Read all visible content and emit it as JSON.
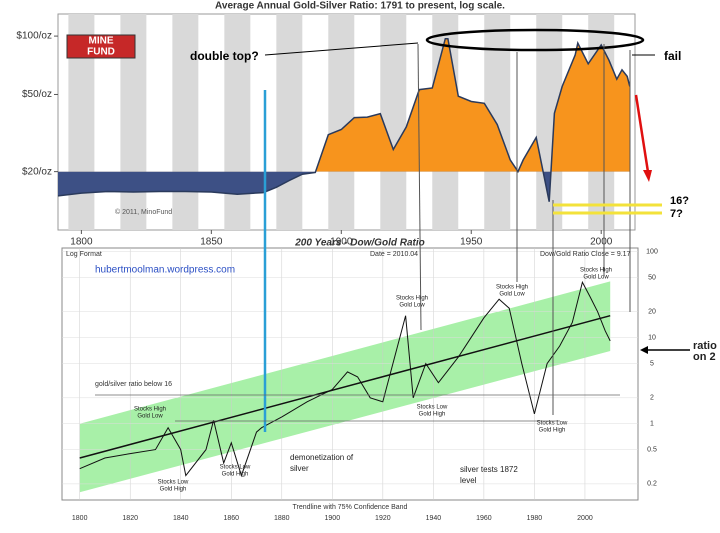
{
  "chart_data": [
    {
      "type": "area",
      "title": "Average Annual Gold-Silver Ratio: 1791 to present, log scale.",
      "logo": [
        "MINE",
        "FUND"
      ],
      "credit": "© 2011, MinoFund",
      "x": [
        1791,
        1800,
        1810,
        1820,
        1830,
        1840,
        1850,
        1860,
        1870,
        1875,
        1880,
        1885,
        1890,
        1895,
        1900,
        1905,
        1910,
        1915,
        1920,
        1925,
        1930,
        1935,
        1940,
        1941,
        1945,
        1950,
        1955,
        1960,
        1965,
        1968,
        1970,
        1975,
        1980,
        1982,
        1985,
        1990,
        1991,
        1995,
        2000,
        2003,
        2006,
        2008,
        2010,
        2011
      ],
      "series": [
        {
          "color": "#f7941d",
          "below_color": "#3d5085",
          "values": [
            15,
            15.5,
            15.8,
            15.7,
            15.8,
            15.8,
            15.7,
            15.3,
            15.6,
            16.6,
            18,
            19.4,
            19.8,
            31,
            33,
            38,
            38.2,
            39.8,
            26,
            34,
            53,
            54,
            97,
            97,
            49,
            46,
            45,
            35,
            23,
            20,
            23,
            30,
            14,
            40,
            55,
            80,
            92,
            72,
            90,
            75,
            60,
            67,
            62,
            55
          ]
        }
      ],
      "fill_base": 20,
      "log_y": true,
      "xlim": [
        1791,
        2013
      ],
      "xticks": [
        1800,
        1850,
        1900,
        1950,
        2000
      ],
      "ylim": [
        10,
        130
      ],
      "yticks": [
        {
          "value": 100,
          "label": "$100/oz"
        },
        {
          "value": 50,
          "label": "$50/oz"
        },
        {
          "value": 20,
          "label": "$20/oz"
        }
      ],
      "annotations": {
        "double_top": "double top?",
        "fail": "fail",
        "q16": "16?",
        "q7": "7?"
      }
    },
    {
      "type": "line",
      "title": "200 Years - Dow/Gold Ratio",
      "header": {
        "format": "Log Format",
        "date": "Date = 2010.04",
        "close": "Dow/Gold Ratio Close = 9.17"
      },
      "footer": "Trendline with 75% Confidence Band",
      "x": [
        1800,
        1810,
        1820,
        1830,
        1835,
        1840,
        1842,
        1850,
        1853,
        1857,
        1860,
        1864,
        1870,
        1872,
        1880,
        1890,
        1900,
        1906,
        1910,
        1915,
        1920,
        1929,
        1932,
        1937,
        1942,
        1950,
        1960,
        1966,
        1970,
        1975,
        1980,
        1985,
        1990,
        1995,
        1999,
        2002,
        2005,
        2008,
        2010
      ],
      "series": [
        {
          "color": "#111111",
          "values": [
            0.3,
            0.4,
            0.45,
            0.5,
            0.9,
            0.5,
            0.25,
            0.5,
            1.1,
            0.35,
            0.6,
            0.25,
            0.8,
            0.9,
            1.2,
            1.8,
            2.5,
            4,
            3.5,
            2,
            1.8,
            18,
            2,
            5,
            3,
            6,
            17,
            28,
            22,
            5,
            1.3,
            5,
            8,
            15,
            44,
            30,
            20,
            12,
            9.17
          ]
        }
      ],
      "trendline": {
        "x": [
          1800,
          2010
        ],
        "values": [
          0.4,
          18
        ],
        "color": "#111111"
      },
      "band": {
        "lower": [
          0.16,
          7
        ],
        "upper": [
          1,
          45
        ],
        "color": "#a8f0a8"
      },
      "log_y": true,
      "xlim": [
        1793,
        2021
      ],
      "xticks": [
        1800,
        1820,
        1840,
        1860,
        1880,
        1900,
        1920,
        1940,
        1960,
        1980,
        2000
      ],
      "ylim": [
        0.13,
        110
      ],
      "yticks": [
        100,
        50,
        20,
        10,
        5,
        2,
        1,
        0.5,
        0.2
      ],
      "annotations": {
        "site": "hubertmoolman.wordpress.com",
        "below16": "gold/silver ratio below 16",
        "sh1": [
          "Stocks High",
          "Gold Low"
        ],
        "sh2": [
          "Stocks High",
          "Gold Low"
        ],
        "sh3": [
          "Stocks High",
          "Gold Low"
        ],
        "sh4": [
          "Stocks High",
          "Gold Low"
        ],
        "sl1": [
          "Stocks Low",
          "Gold High"
        ],
        "sl2": [
          "Stocks Low",
          "Gold High"
        ],
        "sl3": [
          "Stocks Low",
          "Gold High"
        ],
        "sl4": [
          "Stocks Low",
          "Gold High"
        ],
        "demon": [
          "demonetization of",
          "silver"
        ],
        "silver": [
          "silver tests 1872",
          "level"
        ],
        "ratio": [
          "ratio",
          "on 2"
        ]
      }
    }
  ]
}
